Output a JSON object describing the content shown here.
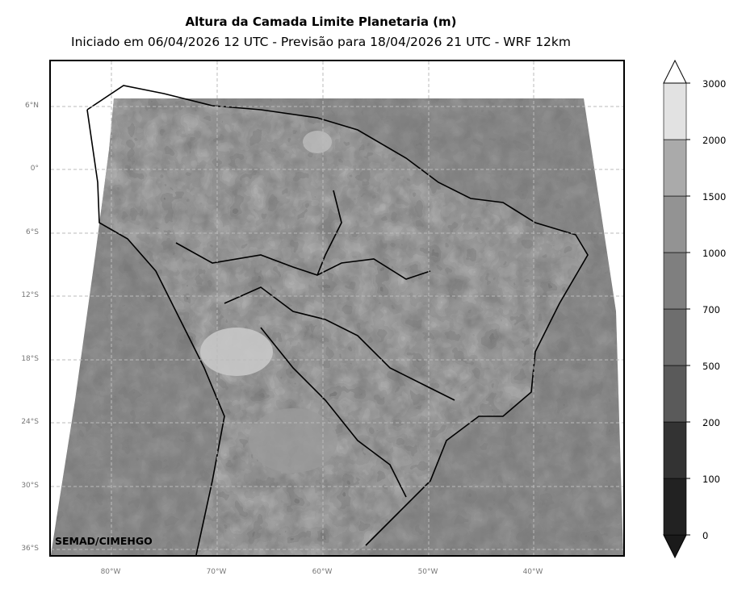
{
  "title": "Altura da Camada Limite Planetaria (m)",
  "subtitle": "Iniciado em 06/04/2026 12 UTC - Previsão para 18/04/2026 21 UTC - WRF 12km",
  "credit": "SEMAD/CIMEHGO",
  "lat_labels": [
    "6°N",
    "0°",
    "6°S",
    "12°S",
    "18°S",
    "24°S",
    "30°S",
    "36°S"
  ],
  "lon_labels": [
    "80°W",
    "70°W",
    "60°W",
    "50°W",
    "40°W"
  ],
  "colorbar": {
    "levels": [
      "0",
      "100",
      "200",
      "500",
      "700",
      "1000",
      "1500",
      "2000",
      "3000"
    ],
    "colors": [
      "#1a1a1a",
      "#222222",
      "#333333",
      "#5a5a5a",
      "#6e6e6e",
      "#7f7f7f",
      "#939393",
      "#aaaaaa",
      "#e2e2e2",
      "#ffffff"
    ]
  }
}
